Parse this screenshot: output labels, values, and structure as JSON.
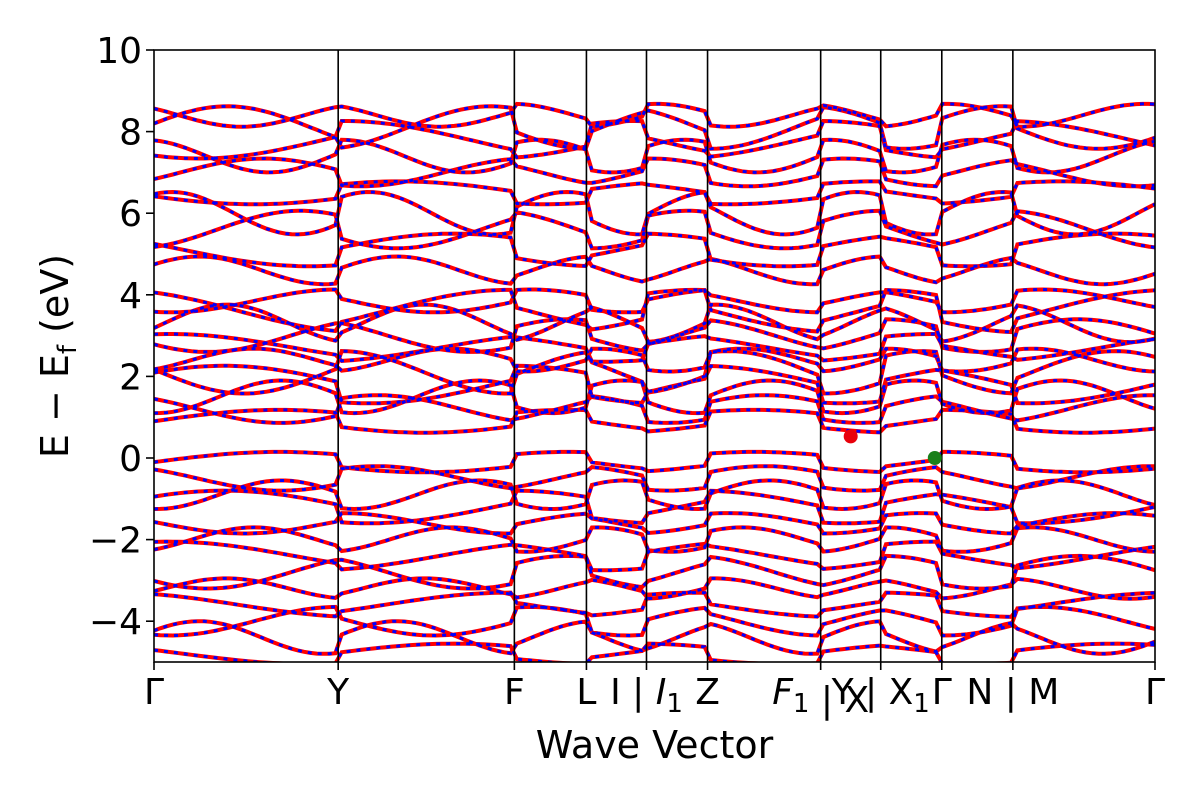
{
  "chart_data": {
    "type": "line",
    "title": "",
    "xlabel": "Wave Vector",
    "ylabel": "E − E",
    "ylabel_subscript": "f",
    "ylabel_unit": " (eV)",
    "ylim": [
      -5,
      10
    ],
    "yticks": [
      -4,
      -2,
      0,
      2,
      4,
      6,
      8,
      10
    ],
    "ytick_labels": [
      "−4",
      "−2",
      "0",
      "2",
      "4",
      "6",
      "8",
      "10"
    ],
    "xlim": [
      0,
      1
    ],
    "grid": false,
    "legend": "none",
    "kpoint_positions": [
      0,
      0.184,
      0.36,
      0.432,
      0.492,
      0.553,
      0.666,
      0.726,
      0.787,
      0.858,
      1.0
    ],
    "kpoint_labels": [
      "Γ",
      "Y",
      "F",
      "L",
      "I | I1",
      "Z",
      "F1 | X",
      "Y | X1",
      "Γ",
      "N | M",
      "Γ"
    ],
    "extra_tick_text": [
      "Γ",
      "Y",
      "F",
      "L",
      "I | I",
      "1",
      "Z",
      "F",
      "1",
      "X",
      "Y | X",
      "1",
      "Γ",
      "N | M",
      "Γ"
    ],
    "band_gap_markers": [
      {
        "name": "CBM",
        "k": 0.696,
        "E": 0.53,
        "color": "#e8000b"
      },
      {
        "name": "VBM",
        "k": 0.78,
        "E": 0.0,
        "color": "#1a7f1a"
      }
    ],
    "series": [
      {
        "color": "#ff0000",
        "style": "solid",
        "bands_valence_center": [
          -0.1,
          -0.5,
          -0.9,
          -1.2,
          -1.6,
          -2.0,
          -2.4,
          -2.8,
          -3.2,
          -3.6,
          -4.0,
          -4.4,
          -4.8
        ],
        "bands_conduction_center": [
          0.9,
          1.2,
          1.5,
          1.8,
          2.1,
          2.4,
          2.7,
          3.0,
          3.3,
          3.6,
          3.85,
          4.6,
          5.1,
          5.6,
          6.0,
          6.5,
          7.0,
          7.4,
          7.8,
          8.1,
          8.4
        ]
      },
      {
        "color": "#0000ff",
        "style": "dotted",
        "bands_valence_center": [
          -0.1,
          -0.5,
          -0.9,
          -1.2,
          -1.6,
          -2.0,
          -2.4,
          -2.8,
          -3.2,
          -3.6,
          -4.0,
          -4.4,
          -4.8
        ],
        "bands_conduction_center": [
          0.9,
          1.2,
          1.5,
          1.8,
          2.1,
          2.4,
          2.7,
          3.0,
          3.3,
          3.6,
          3.85,
          4.6,
          5.1,
          5.6,
          6.0,
          6.5,
          7.0,
          7.4,
          7.8,
          8.1,
          8.4
        ]
      }
    ]
  }
}
